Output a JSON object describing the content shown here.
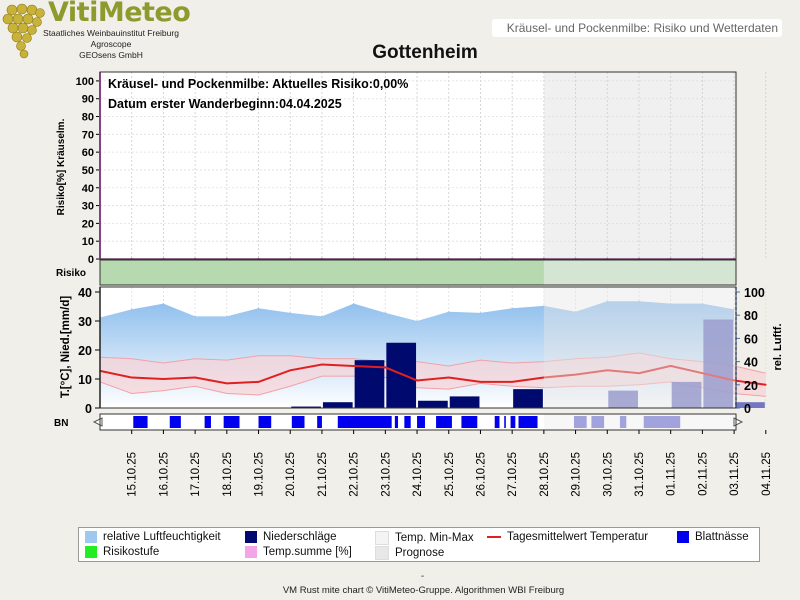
{
  "header": {
    "brand": "VitiMeteo",
    "sub1": "Staatliches Weinbauinstitut Freiburg",
    "sub2": "Agroscope",
    "sub3": "GEOsens GmbH",
    "subtitle": "Kräusel- und Pockenmilbe: Risiko und Wetterdaten",
    "title": "Gottenheim",
    "brand_color": "#8c9a2e",
    "logo_icon": "grape-cluster-icon"
  },
  "info": {
    "risk_text": "Kräusel- und Pockenmilbe: Aktuelles Risiko:0,00%",
    "date_text": "Datum erster Wanderbeginn:04.04.2025"
  },
  "legend": {
    "items": [
      {
        "label": "relative Luftfeuchtigkeit",
        "kind": "box",
        "color": "#9ec8ef"
      },
      {
        "label": "Niederschläge",
        "kind": "box",
        "color": "#000a6e"
      },
      {
        "label": "Temp. Min-Max",
        "kind": "box",
        "color": "#f4f4f4"
      },
      {
        "label": "Tagesmittelwert Temperatur",
        "kind": "line",
        "color": "#e02020"
      },
      {
        "label": "Blattnässe",
        "kind": "box",
        "color": "#0000ee"
      },
      {
        "label": "Risikostufe",
        "kind": "box",
        "color": "#22ee22"
      },
      {
        "label": "Temp.summe [%]",
        "kind": "box",
        "color": "#f2a6e8"
      },
      {
        "label": "Prognose",
        "kind": "box",
        "color": "#e8e8e8"
      }
    ]
  },
  "footer": {
    "dash": "-",
    "credit": "VM Rust mite chart © VitiMeteo-Gruppe. Algorithmen WBI Freiburg"
  },
  "chart_data": {
    "type": "bar",
    "dates": [
      "15.10.25",
      "16.10.25",
      "17.10.25",
      "18.10.25",
      "19.10.25",
      "20.10.25",
      "21.10.25",
      "22.10.25",
      "23.10.25",
      "24.10.25",
      "25.10.25",
      "26.10.25",
      "27.10.25",
      "28.10.25",
      "29.10.25",
      "30.10.25",
      "31.10.25",
      "01.11.25",
      "02.11.25",
      "03.11.25",
      "04.11.25"
    ],
    "forecast_from": "28.10.25",
    "risk_panel": {
      "ylabel": "Risiko[%] Kräuselm.",
      "yticks": [
        0,
        10,
        20,
        30,
        40,
        50,
        60,
        70,
        80,
        90,
        100
      ],
      "ylim": [
        0,
        105
      ],
      "risk_values_x": [
        14,
        15,
        16,
        17,
        18,
        19,
        20,
        21,
        22,
        23,
        24,
        25,
        26,
        27,
        28,
        29,
        30,
        31,
        32,
        33,
        34
      ],
      "temp_sum_percent": [
        0,
        0,
        0,
        0,
        0,
        0,
        0,
        0,
        0,
        0,
        0,
        0,
        0,
        0,
        0,
        0,
        0,
        0,
        0,
        0,
        0
      ],
      "risk_percent": [
        0,
        0,
        0,
        0,
        0,
        0,
        0,
        0,
        0,
        0,
        0,
        0,
        0,
        0,
        0,
        0,
        0,
        0,
        0,
        0,
        0
      ]
    },
    "risk_band": {
      "label": "Risiko",
      "level": "low",
      "color": "#b6d9b0"
    },
    "weather_panel": {
      "ylabel_left": "T.[°C], Nied.[mm/d]",
      "ylabel_right": "rel. Luftf.",
      "yticks_left": [
        0,
        10,
        20,
        30,
        40
      ],
      "ylim_left": [
        0,
        40
      ],
      "yticks_right": [
        0,
        20,
        40,
        60,
        80,
        100
      ],
      "ylim_right": [
        0,
        100
      ],
      "humidity_x": [
        14,
        15,
        16,
        17,
        18,
        19,
        20,
        21,
        22,
        23,
        24,
        25,
        26,
        27,
        28,
        29,
        30,
        31,
        32,
        33,
        34
      ],
      "humidity": [
        78,
        85,
        90,
        79,
        79,
        86,
        82,
        79,
        90,
        82,
        75,
        83,
        82,
        86,
        88,
        83,
        92,
        92,
        90,
        90,
        85
      ],
      "temp_mean": [
        12.8,
        10.5,
        10,
        10.5,
        8.5,
        9,
        13,
        15,
        14.5,
        14,
        9.5,
        10.5,
        9,
        9,
        10.5,
        11.5,
        13,
        12,
        14.5,
        12,
        9.5,
        8
      ],
      "temp_max": [
        17.5,
        17,
        15.5,
        17,
        16.5,
        18,
        18,
        17,
        17,
        16,
        16,
        14.5,
        16.5,
        15.5,
        16,
        17,
        17.5,
        19,
        17,
        16,
        14.5,
        12
      ],
      "temp_min": [
        9,
        5,
        6,
        7.5,
        5,
        4.5,
        7.5,
        11,
        11,
        10.5,
        7,
        6.5,
        8.5,
        7.5,
        7,
        7.5,
        7.5,
        8,
        9,
        7,
        5,
        4
      ],
      "temp_x": [
        14,
        15,
        16,
        17,
        18,
        19,
        20,
        21,
        22,
        23,
        24,
        25,
        26,
        27,
        28,
        29,
        30,
        31,
        32,
        33,
        34,
        35
      ],
      "precip_x": [
        14,
        15,
        16,
        17,
        18,
        19,
        20,
        21,
        22,
        23,
        24,
        25,
        26,
        27,
        28,
        29,
        30,
        31,
        32,
        33,
        34
      ],
      "precipitation": [
        0,
        0,
        0,
        0,
        0,
        0,
        0.5,
        2,
        16.5,
        22.5,
        2.5,
        4,
        0,
        6.5,
        0,
        0,
        6,
        0,
        9,
        30.5,
        2
      ],
      "precip_lag": [
        0,
        0,
        0,
        0,
        0,
        0,
        0,
        0,
        0,
        0,
        0,
        0,
        0,
        0,
        0,
        0,
        0,
        0,
        0,
        0,
        0
      ]
    },
    "bn_panel": {
      "label": "BN",
      "segments": [
        [
          15.05,
          15.5
        ],
        [
          16.2,
          16.55
        ],
        [
          17.3,
          17.5
        ],
        [
          17.9,
          18.4
        ],
        [
          19.0,
          19.4
        ],
        [
          20.05,
          20.45
        ],
        [
          20.85,
          21.0
        ],
        [
          21.5,
          23.2
        ],
        [
          23.3,
          23.4
        ],
        [
          23.6,
          23.8
        ],
        [
          24.0,
          24.25
        ],
        [
          24.6,
          25.1
        ],
        [
          25.4,
          25.9
        ],
        [
          26.45,
          26.6
        ],
        [
          26.75,
          26.8
        ],
        [
          26.95,
          27.1
        ],
        [
          27.2,
          27.8
        ],
        [
          28.95,
          29.35
        ],
        [
          29.5,
          29.9
        ],
        [
          30.4,
          30.6
        ],
        [
          31.15,
          32.3
        ]
      ]
    },
    "x_axis_labels": [
      "15.10.25",
      "16.10.25",
      "17.10.25",
      "18.10.25",
      "19.10.25",
      "20.10.25",
      "21.10.25",
      "22.10.25",
      "23.10.25",
      "24.10.25",
      "25.10.25",
      "26.10.25",
      "27.10.25",
      "28.10.25",
      "29.10.25",
      "30.10.25",
      "31.10.25",
      "01.11.25",
      "02.11.25",
      "03.11.25",
      "04.11.25"
    ]
  }
}
